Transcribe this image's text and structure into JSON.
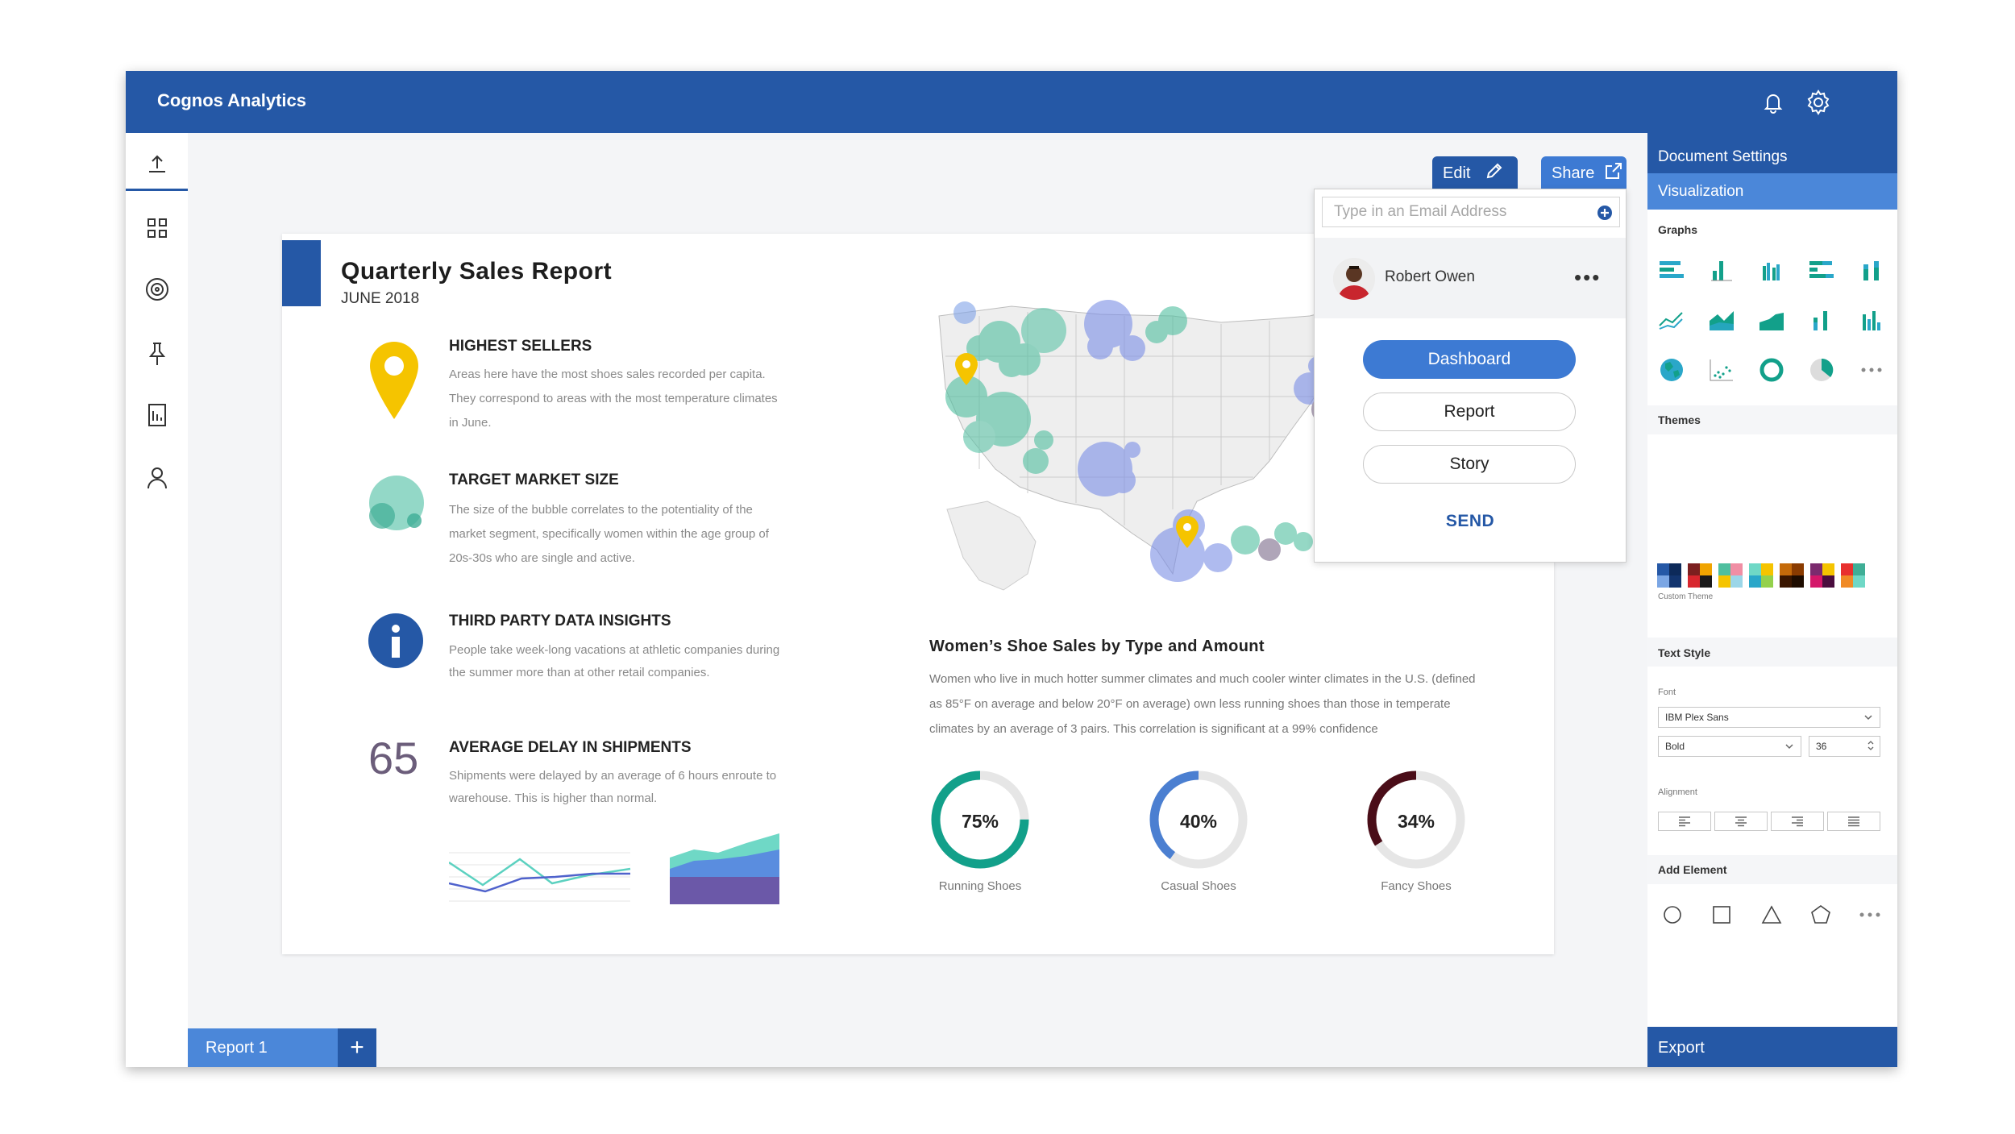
{
  "app": {
    "title": "Cognos Analytics"
  },
  "report": {
    "title": "Quarterly Sales Report",
    "date": "JUNE 2018",
    "insights": [
      {
        "title": "HIGHEST SELLERS",
        "desc": "Areas here have the most shoes sales recorded per capita. They correspond to areas with the most temperature climates in June."
      },
      {
        "title": "TARGET MARKET SIZE",
        "desc": "The size of the bubble correlates to the potentiality of the market segment, specifically women within the age group of 20s-30s who are single and active."
      },
      {
        "title": "THIRD PARTY DATA INSIGHTS",
        "desc": "People take week-long vacations at athletic companies during the summer more than at other retail companies."
      },
      {
        "title": "AVERAGE DELAY IN SHIPMENTS",
        "desc": "Shipments were delayed by an average of 6 hours enroute to warehouse. This is higher than normal."
      }
    ],
    "big_number": "65",
    "chart_section": {
      "title": "Women’s Shoe Sales by Type and Amount",
      "desc": "Women who live in much hotter summer climates and much cooler winter climates in the U.S. (defined as 85°F on average and below 20°F on average) own less running shoes than those in temperate climates by an average of 3 pairs.  This correlation is significant at a 99% confidence"
    },
    "donuts": [
      {
        "pct_label": "75%",
        "value": 0.75,
        "label": "Running Shoes",
        "color": "#12a08a"
      },
      {
        "pct_label": "40%",
        "value": 0.4,
        "label": "Casual Shoes",
        "color": "#4b7fd1"
      },
      {
        "pct_label": "34%",
        "value": 0.34,
        "label": "Fancy Shoes",
        "color": "#4a0d18"
      }
    ]
  },
  "toolbar": {
    "edit_label": "Edit",
    "share_label": "Share"
  },
  "share_popup": {
    "email_placeholder": "Type in an Email Address",
    "user_name": "Robert Owen",
    "more_label": "•••",
    "options": [
      "Dashboard",
      "Report",
      "Story"
    ],
    "send_label": "SEND"
  },
  "right_panel": {
    "doc_settings": "Document Settings",
    "tab": "Visualization",
    "graphs_title": "Graphs",
    "themes_title": "Themes",
    "custom_theme": "Custom Theme",
    "text_style_title": "Text Style",
    "font_label": "Font",
    "font_value": "IBM Plex Sans",
    "weight_value": "Bold",
    "size_value": "36",
    "alignment_label": "Alignment",
    "add_element_title": "Add Element",
    "export_label": "Export"
  },
  "tabs": {
    "report_tab": "Report 1",
    "add_label": "+"
  },
  "colors": {
    "brand": "#2558a6",
    "accent": "#4b87d9",
    "teal": "#12a08a",
    "yellow": "#f5c400"
  }
}
